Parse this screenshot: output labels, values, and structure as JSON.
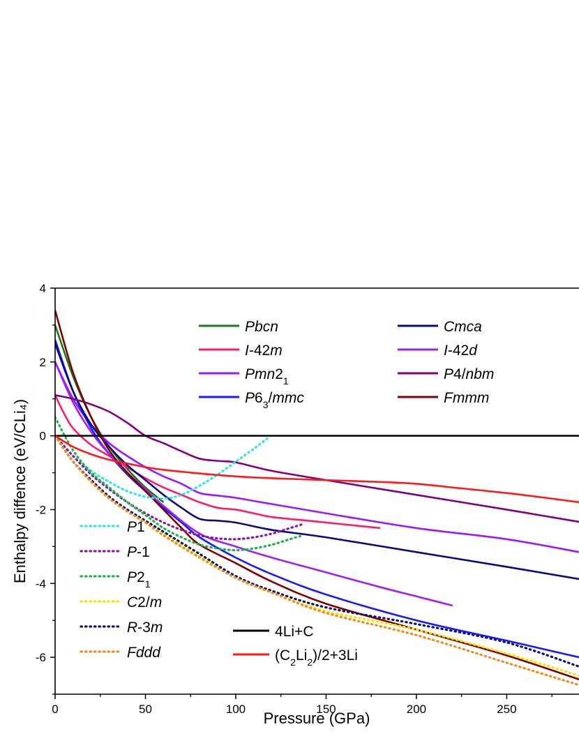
{
  "chart_data": {
    "type": "line",
    "title": "",
    "xlabel": "Pressure (GPa)",
    "ylabel": "Enthalpy diffence (eV/CLi₄)",
    "xlim": [
      0,
      290
    ],
    "ylim": [
      -7,
      4
    ],
    "xticks": [
      0,
      50,
      100,
      150,
      200,
      250
    ],
    "yticks": [
      4,
      2,
      0,
      -2,
      -4,
      -6
    ],
    "xtick_labels": [
      "0",
      "50",
      "100",
      "150",
      "200",
      "250"
    ],
    "ytick_labels": [
      "4",
      "2",
      "0",
      "-2",
      "-4",
      "-6"
    ],
    "grid": false,
    "zero_line": true,
    "series": [
      {
        "name": "Pbcn",
        "color": "#1a7a1a",
        "dash": "solid",
        "legend": "top-left",
        "x": [
          0,
          10,
          20,
          30,
          40,
          50,
          60
        ],
        "y": [
          3.0,
          1.6,
          0.5,
          -0.3,
          -0.9,
          -1.4,
          -1.8
        ]
      },
      {
        "name": "I-42m",
        "color": "#ff1a6e",
        "dash": "solid",
        "legend": "top-left",
        "x": [
          0,
          5,
          10,
          20,
          30,
          40,
          50,
          60,
          70,
          80,
          90,
          100,
          110,
          120,
          140,
          160,
          180
        ],
        "y": [
          1.1,
          0.6,
          0.2,
          -0.25,
          -0.55,
          -0.85,
          -1.15,
          -1.4,
          -1.6,
          -1.8,
          -1.95,
          -2.0,
          -2.1,
          -2.2,
          -2.3,
          -2.4,
          -2.5
        ]
      },
      {
        "name": "Pmn2₁",
        "color": "#9a1aff",
        "dash": "solid",
        "legend": "top-left",
        "x": [
          0,
          10,
          20,
          30,
          40,
          50,
          60,
          70,
          80,
          90,
          100,
          120,
          150,
          200,
          250,
          290
        ],
        "y": [
          2.0,
          1.0,
          0.3,
          -0.2,
          -0.55,
          -0.85,
          -1.1,
          -1.3,
          -1.55,
          -1.62,
          -1.68,
          -1.85,
          -2.1,
          -2.5,
          -2.8,
          -3.15
        ]
      },
      {
        "name": "P6₃/mmc",
        "color": "#1a1aff",
        "dash": "solid",
        "legend": "top-left",
        "x": [
          0,
          10,
          20,
          30,
          40,
          50,
          60,
          70,
          80,
          100,
          120,
          150,
          200,
          250,
          290
        ],
        "y": [
          2.6,
          1.2,
          0.2,
          -0.5,
          -1.05,
          -1.5,
          -1.95,
          -2.35,
          -2.75,
          -3.3,
          -3.75,
          -4.3,
          -5.0,
          -5.55,
          -6.0
        ]
      },
      {
        "name": "Cmca",
        "color": "#0a0a80",
        "dash": "solid",
        "legend": "top-right",
        "x": [
          0,
          10,
          20,
          30,
          40,
          50,
          60,
          70,
          80,
          90,
          100,
          120,
          150,
          200,
          250,
          290
        ],
        "y": [
          2.5,
          1.2,
          0.3,
          -0.3,
          -0.8,
          -1.2,
          -1.6,
          -1.95,
          -2.25,
          -2.3,
          -2.35,
          -2.55,
          -2.75,
          -3.15,
          -3.55,
          -3.88
        ]
      },
      {
        "name": "I-42d",
        "color": "#a020f0",
        "dash": "solid",
        "legend": "top-right",
        "x": [
          0,
          10,
          20,
          30,
          40,
          50,
          60,
          80,
          100,
          120,
          150,
          180,
          200,
          220
        ],
        "y": [
          2.0,
          0.9,
          0.1,
          -0.5,
          -1.0,
          -1.45,
          -1.9,
          -2.65,
          -3.0,
          -3.3,
          -3.7,
          -4.1,
          -4.35,
          -4.6
        ]
      },
      {
        "name": "P4/nbm",
        "color": "#800080",
        "dash": "solid",
        "legend": "top-right",
        "x": [
          0,
          10,
          20,
          30,
          40,
          50,
          60,
          70,
          80,
          90,
          100,
          120,
          150,
          200,
          250,
          290
        ],
        "y": [
          1.1,
          1.0,
          0.85,
          0.65,
          0.35,
          0.0,
          -0.2,
          -0.42,
          -0.62,
          -0.68,
          -0.72,
          -0.95,
          -1.2,
          -1.6,
          -2.0,
          -2.33
        ]
      },
      {
        "name": "Fmmm",
        "color": "#800000",
        "dash": "solid",
        "legend": "top-right",
        "x": [
          0,
          10,
          20,
          30,
          40,
          50,
          60,
          70,
          80,
          100,
          120,
          150,
          200,
          250,
          290
        ],
        "y": [
          3.4,
          1.7,
          0.5,
          -0.4,
          -1.0,
          -1.5,
          -2.0,
          -2.5,
          -2.95,
          -3.45,
          -3.95,
          -4.55,
          -5.25,
          -5.95,
          -6.6
        ]
      },
      {
        "name": "P1",
        "color": "#33e6e6",
        "dash": "dotted",
        "legend": "bottom-left",
        "x": [
          0,
          10,
          20,
          30,
          40,
          50,
          60,
          70,
          80,
          90,
          100,
          110,
          118
        ],
        "y": [
          0.0,
          -0.55,
          -0.95,
          -1.25,
          -1.5,
          -1.65,
          -1.7,
          -1.6,
          -1.35,
          -1.05,
          -0.7,
          -0.35,
          -0.05
        ]
      },
      {
        "name": "P-1",
        "color": "#8b1a9a",
        "dash": "dotted",
        "legend": "bottom-left",
        "x": [
          0,
          10,
          20,
          30,
          40,
          50,
          60,
          70,
          80,
          90,
          100,
          110,
          120,
          130,
          138
        ],
        "y": [
          0.0,
          -0.55,
          -1.05,
          -1.45,
          -1.8,
          -2.1,
          -2.35,
          -2.55,
          -2.7,
          -2.78,
          -2.8,
          -2.75,
          -2.65,
          -2.5,
          -2.38
        ]
      },
      {
        "name": "P2₁",
        "color": "#22b24c",
        "dash": "dotted",
        "legend": "bottom-left",
        "x": [
          0,
          10,
          20,
          30,
          40,
          50,
          60,
          70,
          80,
          90,
          100,
          110,
          120,
          130,
          137
        ],
        "y": [
          0.5,
          -0.4,
          -1.0,
          -1.4,
          -1.8,
          -2.15,
          -2.5,
          -2.75,
          -2.95,
          -3.05,
          -3.1,
          -3.05,
          -2.95,
          -2.8,
          -2.7
        ]
      },
      {
        "name": "C2/m",
        "color": "#f0e800",
        "dash": "dotted",
        "legend": "bottom-left",
        "x": [
          0,
          10,
          20,
          30,
          40,
          50,
          60,
          80,
          100,
          120,
          150,
          200,
          250,
          290
        ],
        "y": [
          0.0,
          -0.7,
          -1.25,
          -1.7,
          -2.05,
          -2.35,
          -2.65,
          -3.25,
          -3.85,
          -4.25,
          -4.75,
          -5.25,
          -5.9,
          -6.5
        ]
      },
      {
        "name": "R-3m",
        "color": "#10107a",
        "dash": "dotted",
        "legend": "bottom-left",
        "x": [
          0,
          10,
          20,
          30,
          40,
          50,
          60,
          80,
          100,
          120,
          150,
          200,
          250,
          290
        ],
        "y": [
          0.0,
          -0.7,
          -1.2,
          -1.65,
          -2.0,
          -2.3,
          -2.6,
          -3.2,
          -3.8,
          -4.2,
          -4.65,
          -5.1,
          -5.6,
          -6.25
        ]
      },
      {
        "name": "Fddd",
        "color": "#f08c20",
        "dash": "dotted",
        "legend": "bottom-left",
        "x": [
          0,
          10,
          20,
          30,
          40,
          50,
          60,
          80,
          100,
          120,
          150,
          200,
          250,
          290
        ],
        "y": [
          0.0,
          -0.7,
          -1.25,
          -1.7,
          -2.05,
          -2.35,
          -2.7,
          -3.3,
          -3.85,
          -4.25,
          -4.8,
          -5.4,
          -6.15,
          -6.75
        ]
      },
      {
        "name": "4Li+C",
        "color": "#000000",
        "dash": "solid",
        "legend": "bottom-middle",
        "x": [
          0,
          290
        ],
        "y": [
          0,
          0
        ]
      },
      {
        "name": "(C₂Li₂)/2+3Li",
        "color": "#ff1a1a",
        "dash": "solid",
        "legend": "bottom-middle",
        "x": [
          0,
          10,
          20,
          30,
          40,
          50,
          60,
          80,
          100,
          120,
          150,
          180,
          200,
          220,
          250,
          270,
          290
        ],
        "y": [
          0.0,
          -0.3,
          -0.5,
          -0.65,
          -0.75,
          -0.85,
          -0.92,
          -1.02,
          -1.1,
          -1.15,
          -1.2,
          -1.25,
          -1.3,
          -1.4,
          -1.55,
          -1.67,
          -1.8
        ]
      }
    ]
  }
}
